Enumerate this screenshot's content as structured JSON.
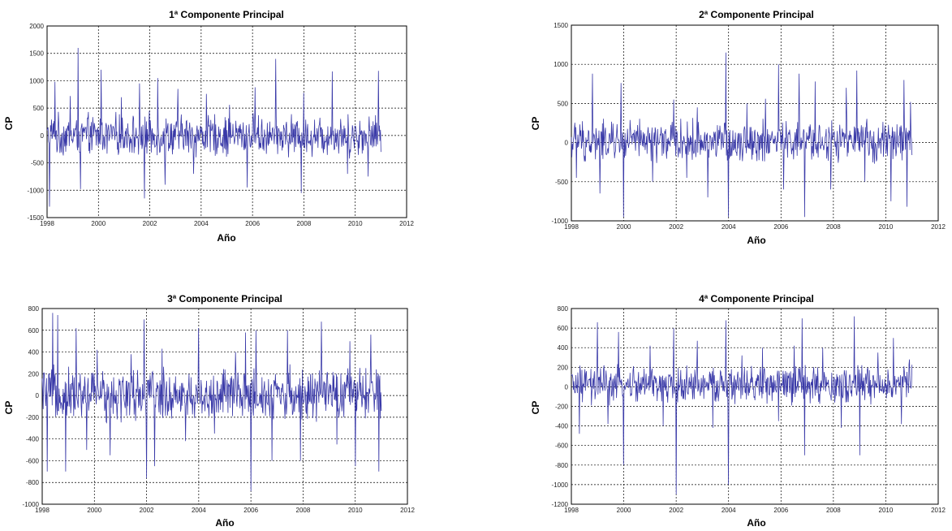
{
  "chart_data": [
    {
      "type": "line",
      "title": "1ª Componente Principal",
      "xlabel": "Año",
      "ylabel": "CP",
      "xlim": [
        1998,
        2012
      ],
      "ylim": [
        -1500,
        2000
      ],
      "xticks": [
        1998,
        2000,
        2002,
        2004,
        2006,
        2008,
        2010,
        2012
      ],
      "yticks": [
        -1500,
        -1000,
        -500,
        0,
        500,
        1000,
        1500,
        2000
      ],
      "grid": true,
      "color": "#3a3aa8",
      "series": [
        {
          "x_start": 1998.0,
          "x_end": 2011.0,
          "n_points": 680,
          "typical_range": [
            -450,
            450
          ],
          "peaks": [
            [
              1998.1,
              -1300
            ],
            [
              1998.3,
              980
            ],
            [
              1998.9,
              720
            ],
            [
              1999.2,
              1600
            ],
            [
              1999.3,
              -980
            ],
            [
              2000.1,
              1200
            ],
            [
              2000.9,
              700
            ],
            [
              2001.6,
              950
            ],
            [
              2001.8,
              -1150
            ],
            [
              2002.3,
              1050
            ],
            [
              2002.6,
              -900
            ],
            [
              2003.1,
              850
            ],
            [
              2003.7,
              -700
            ],
            [
              2004.2,
              760
            ],
            [
              2005.1,
              560
            ],
            [
              2005.8,
              -950
            ],
            [
              2006.1,
              880
            ],
            [
              2006.9,
              1400
            ],
            [
              2007.4,
              -400
            ],
            [
              2007.9,
              -1050
            ],
            [
              2008.0,
              780
            ],
            [
              2009.1,
              1170
            ],
            [
              2009.7,
              -700
            ],
            [
              2010.5,
              -750
            ],
            [
              2010.9,
              1180
            ],
            [
              2011.0,
              -300
            ]
          ]
        }
      ]
    },
    {
      "type": "line",
      "title": "2ª Componente Principal",
      "xlabel": "Año",
      "ylabel": "CP",
      "xlim": [
        1998,
        2012
      ],
      "ylim": [
        -1000,
        1500
      ],
      "xticks": [
        1998,
        2000,
        2002,
        2004,
        2006,
        2008,
        2010,
        2012
      ],
      "yticks": [
        -1000,
        -500,
        0,
        500,
        1000,
        1500
      ],
      "grid": true,
      "color": "#3a3aa8",
      "series": [
        {
          "x_start": 1998.0,
          "x_end": 2011.0,
          "n_points": 680,
          "typical_range": [
            -300,
            330
          ],
          "peaks": [
            [
              1998.2,
              -450
            ],
            [
              1998.8,
              880
            ],
            [
              1999.1,
              -650
            ],
            [
              1999.9,
              760
            ],
            [
              2000.0,
              -950
            ],
            [
              2001.1,
              -500
            ],
            [
              2001.9,
              550
            ],
            [
              2002.4,
              -450
            ],
            [
              2002.8,
              450
            ],
            [
              2003.2,
              -700
            ],
            [
              2003.9,
              1150
            ],
            [
              2004.0,
              -950
            ],
            [
              2004.7,
              500
            ],
            [
              2005.4,
              560
            ],
            [
              2005.9,
              1000
            ],
            [
              2006.1,
              -600
            ],
            [
              2006.7,
              880
            ],
            [
              2006.9,
              -950
            ],
            [
              2007.3,
              780
            ],
            [
              2007.9,
              -600
            ],
            [
              2008.5,
              700
            ],
            [
              2008.9,
              920
            ],
            [
              2009.2,
              -500
            ],
            [
              2010.2,
              -750
            ],
            [
              2010.7,
              800
            ],
            [
              2010.8,
              -820
            ],
            [
              2010.95,
              520
            ]
          ]
        }
      ]
    },
    {
      "type": "line",
      "title": "3ª Componente Principal",
      "xlabel": "Año",
      "ylabel": "CP",
      "xlim": [
        1998,
        2012
      ],
      "ylim": [
        -1000,
        800
      ],
      "xticks": [
        1998,
        2000,
        2002,
        2004,
        2006,
        2008,
        2010,
        2012
      ],
      "yticks": [
        -1000,
        -800,
        -600,
        -400,
        -200,
        0,
        200,
        400,
        600,
        800
      ],
      "grid": true,
      "color": "#3a3aa8",
      "series": [
        {
          "x_start": 1998.0,
          "x_end": 2011.0,
          "n_points": 680,
          "typical_range": [
            -280,
            300
          ],
          "peaks": [
            [
              1998.2,
              -700
            ],
            [
              1998.4,
              760
            ],
            [
              1998.6,
              740
            ],
            [
              1998.9,
              -700
            ],
            [
              1999.3,
              620
            ],
            [
              1999.7,
              -500
            ],
            [
              2000.1,
              420
            ],
            [
              2000.6,
              -550
            ],
            [
              2001.4,
              380
            ],
            [
              2001.9,
              700
            ],
            [
              2002.0,
              -760
            ],
            [
              2002.3,
              -650
            ],
            [
              2002.6,
              430
            ],
            [
              2003.5,
              -420
            ],
            [
              2004.0,
              620
            ],
            [
              2004.6,
              -350
            ],
            [
              2005.4,
              400
            ],
            [
              2005.8,
              580
            ],
            [
              2006.0,
              -880
            ],
            [
              2006.2,
              600
            ],
            [
              2006.8,
              -600
            ],
            [
              2007.4,
              600
            ],
            [
              2007.9,
              -600
            ],
            [
              2008.7,
              680
            ],
            [
              2009.3,
              -450
            ],
            [
              2009.8,
              500
            ],
            [
              2010.0,
              -650
            ],
            [
              2010.6,
              560
            ],
            [
              2010.9,
              -700
            ]
          ]
        }
      ]
    },
    {
      "type": "line",
      "title": "4ª Componente Principal",
      "xlabel": "Año",
      "ylabel": "CP",
      "xlim": [
        1998,
        2012
      ],
      "ylim": [
        -1200,
        800
      ],
      "xticks": [
        1998,
        2000,
        2002,
        2004,
        2006,
        2008,
        2010,
        2012
      ],
      "yticks": [
        -1200,
        -1000,
        -800,
        -600,
        -400,
        -200,
        0,
        200,
        400,
        600,
        800
      ],
      "grid": true,
      "color": "#3a3aa8",
      "series": [
        {
          "x_start": 1998.0,
          "x_end": 2011.0,
          "n_points": 680,
          "typical_range": [
            -220,
            250
          ],
          "peaks": [
            [
              1998.3,
              -480
            ],
            [
              1999.0,
              660
            ],
            [
              1999.4,
              -380
            ],
            [
              1999.8,
              560
            ],
            [
              2000.0,
              -800
            ],
            [
              2001.0,
              420
            ],
            [
              2001.5,
              -400
            ],
            [
              2001.9,
              600
            ],
            [
              2002.0,
              -1100
            ],
            [
              2002.8,
              470
            ],
            [
              2003.4,
              -420
            ],
            [
              2003.9,
              680
            ],
            [
              2004.0,
              -1000
            ],
            [
              2004.5,
              320
            ],
            [
              2005.3,
              400
            ],
            [
              2005.9,
              -350
            ],
            [
              2006.5,
              420
            ],
            [
              2006.8,
              700
            ],
            [
              2006.9,
              -700
            ],
            [
              2007.6,
              400
            ],
            [
              2008.3,
              -420
            ],
            [
              2008.8,
              720
            ],
            [
              2009.0,
              -700
            ],
            [
              2009.7,
              350
            ],
            [
              2010.3,
              500
            ],
            [
              2010.6,
              -380
            ],
            [
              2010.9,
              280
            ]
          ]
        }
      ]
    }
  ]
}
